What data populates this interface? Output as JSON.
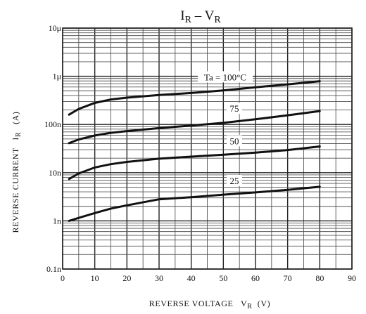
{
  "chart_data": {
    "type": "line",
    "title": {
      "main": "I",
      "main_sub": "R",
      "sep": " – ",
      "second": "V",
      "second_sub": "R"
    },
    "xlabel": {
      "text": "REVERSE VOLTAGE   V",
      "sub": "R",
      "unit": "  (V)"
    },
    "ylabel": {
      "text": "REVERSE CURRENT   I",
      "sub": "R",
      "unit": "   (A)"
    },
    "xlim": [
      0,
      90
    ],
    "ylim": [
      1e-10,
      1e-05
    ],
    "yscale": "log",
    "grid": true,
    "x_ticks": [
      {
        "value": 0,
        "label": "0"
      },
      {
        "value": 10,
        "label": "10"
      },
      {
        "value": 20,
        "label": "20"
      },
      {
        "value": 30,
        "label": "30"
      },
      {
        "value": 40,
        "label": "40"
      },
      {
        "value": 50,
        "label": "50"
      },
      {
        "value": 60,
        "label": "60"
      },
      {
        "value": 70,
        "label": "70"
      },
      {
        "value": 80,
        "label": "80"
      },
      {
        "value": 90,
        "label": "90"
      }
    ],
    "y_ticks": [
      {
        "value": 1e-10,
        "label": "0.1n"
      },
      {
        "value": 1e-09,
        "label": "1n"
      },
      {
        "value": 1e-08,
        "label": "10n"
      },
      {
        "value": 1e-07,
        "label": "100n"
      },
      {
        "value": 1e-06,
        "label": "1μ"
      },
      {
        "value": 1e-05,
        "label": "10μ"
      }
    ],
    "series": [
      {
        "name": "Ta = 100°C",
        "x": [
          2,
          5,
          10,
          15,
          20,
          30,
          40,
          50,
          60,
          70,
          80
        ],
        "y": [
          1.6e-07,
          2.1e-07,
          2.8e-07,
          3.3e-07,
          3.6e-07,
          4.1e-07,
          4.5e-07,
          5.1e-07,
          5.9e-07,
          6.8e-07,
          7.9e-07
        ]
      },
      {
        "name": "75",
        "x": [
          2,
          5,
          10,
          15,
          20,
          30,
          40,
          50,
          60,
          70,
          80
        ],
        "y": [
          4.1e-08,
          4.9e-08,
          5.9e-08,
          6.7e-08,
          7.3e-08,
          8.4e-08,
          9.5e-08,
          1.08e-07,
          1.28e-07,
          1.55e-07,
          1.9e-07
        ]
      },
      {
        "name": "50",
        "x": [
          2,
          5,
          10,
          15,
          20,
          30,
          40,
          50,
          60,
          70,
          80
        ],
        "y": [
          7.4e-09,
          9.6e-09,
          1.28e-08,
          1.5e-08,
          1.67e-08,
          1.95e-08,
          2.15e-08,
          2.35e-08,
          2.6e-08,
          2.95e-08,
          3.5e-08
        ]
      },
      {
        "name": "25",
        "x": [
          2,
          5,
          10,
          15,
          20,
          30,
          40,
          50,
          60,
          70,
          80
        ],
        "y": [
          1e-09,
          1.15e-09,
          1.45e-09,
          1.8e-09,
          2.1e-09,
          2.8e-09,
          3.1e-09,
          3.5e-09,
          3.9e-09,
          4.4e-09,
          5.1e-09
        ]
      }
    ]
  }
}
